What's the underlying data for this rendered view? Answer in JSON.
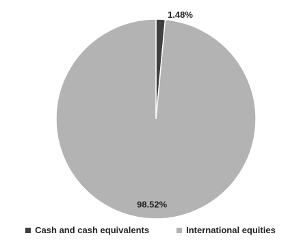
{
  "chart_data": {
    "type": "pie",
    "title": "",
    "categories": [
      "Cash and cash equivalents",
      "International equities"
    ],
    "values": [
      1.48,
      98.52
    ],
    "labels": [
      "1.48%",
      "98.52%"
    ],
    "colors": [
      "#404040",
      "#b3b3b3"
    ],
    "legend_position": "bottom"
  }
}
